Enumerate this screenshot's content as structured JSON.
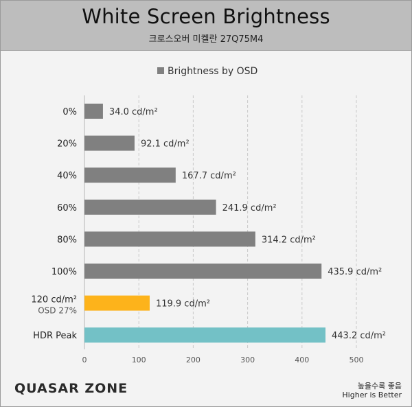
{
  "header": {
    "title": "White Screen Brightness",
    "subtitle": "크로스오버 미켈란 27Q75M4"
  },
  "footer": {
    "brand": "QUASAR ZONE",
    "note_ko": "높을수록 좋음",
    "note_en": "Higher is Better"
  },
  "chart_data": {
    "type": "bar",
    "orientation": "horizontal",
    "legend": {
      "label": "Brightness by OSD",
      "position": "top"
    },
    "categories": [
      "0%",
      "20%",
      "40%",
      "60%",
      "80%",
      "100%",
      "120 cd/m²",
      "HDR Peak"
    ],
    "category_sublabels": [
      "",
      "",
      "",
      "",
      "",
      "",
      "OSD 27%",
      ""
    ],
    "values": [
      34.0,
      92.1,
      167.7,
      241.9,
      314.2,
      435.9,
      119.9,
      443.2
    ],
    "value_labels": [
      "34.0 cd/m²",
      "92.1 cd/m²",
      "167.7 cd/m²",
      "241.9 cd/m²",
      "314.2 cd/m²",
      "435.9 cd/m²",
      "119.9 cd/m²",
      "443.2 cd/m²"
    ],
    "bar_colors": [
      "#808080",
      "#808080",
      "#808080",
      "#808080",
      "#808080",
      "#808080",
      "#fdb31b",
      "#73c1c6"
    ],
    "xlim": [
      0,
      500
    ],
    "xticks": [
      0,
      100,
      200,
      300,
      400,
      500
    ],
    "grid": "vertical-dashed"
  }
}
